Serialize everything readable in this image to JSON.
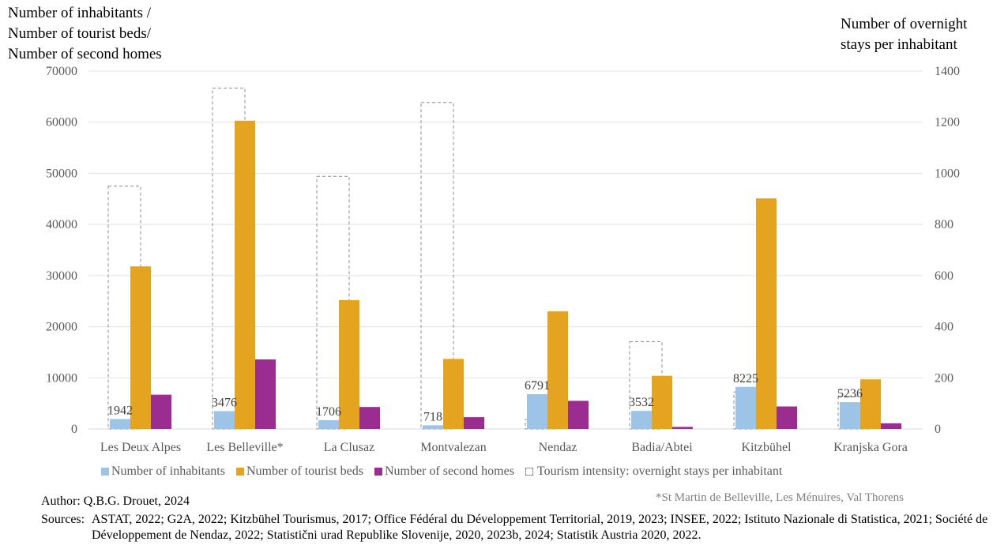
{
  "chart_data": {
    "type": "bar",
    "y_axis_left_title_lines": [
      "Number of inhabitants /",
      "Number of tourist beds/",
      "Number of second homes"
    ],
    "y_axis_right_title_lines": [
      "Number of overnight",
      "stays per inhabitant"
    ],
    "ylim_left": [
      0,
      70000
    ],
    "ylim_right": [
      0,
      1400
    ],
    "y_ticks_left": [
      "0",
      "10000",
      "20000",
      "30000",
      "40000",
      "50000",
      "60000",
      "70000"
    ],
    "y_ticks_right": [
      "0",
      "200",
      "400",
      "600",
      "800",
      "1000",
      "1200",
      "1400"
    ],
    "grid": true,
    "legend_position": "bottom",
    "categories": [
      "Les Deux Alpes",
      "Les Belleville*",
      "La Clusaz",
      "Montvalezan",
      "Nendaz",
      "Badia/Abtei",
      "Kitzbühel",
      "Kranjska Gora"
    ],
    "series": [
      {
        "name": "Number of inhabitants",
        "axis": "left",
        "color": "#9dc3e6",
        "values": [
          1942,
          3476,
          1706,
          718,
          6791,
          3532,
          8225,
          5236
        ],
        "data_labels": [
          "1942",
          "3476",
          "1706",
          "718",
          "6791",
          "3532",
          "8225",
          "5236"
        ]
      },
      {
        "name": "Number of tourist beds",
        "axis": "left",
        "color": "#e5a41f",
        "values": [
          31800,
          60300,
          25200,
          13700,
          23000,
          10400,
          45100,
          9700
        ]
      },
      {
        "name": "Number of second homes",
        "axis": "left",
        "color": "#9b2d91",
        "values": [
          6700,
          13600,
          4300,
          2300,
          5500,
          400,
          4400,
          1100
        ]
      },
      {
        "name": "Tourism intensity: overnight stays per inhabitant",
        "axis": "right",
        "style": "dashed-outline",
        "values": [
          950,
          1333,
          988,
          1277,
          37,
          342,
          145,
          128
        ]
      }
    ]
  },
  "footnote": "*St Martin de Belleville, Les Ménuires, Val Thorens",
  "author": "Author: Q.B.G. Drouet, 2024",
  "sources_key": "Sources:",
  "sources_text": "ASTAT, 2022; G2A, 2022; Kitzbühel Tourismus, 2017; Office Fédéral du Développement Territorial, 2019, 2023; INSEE, 2022; Istituto Nazionale di Statistica, 2021; Société de Développement de Nendaz, 2022; Statistični urad Republike Slovenije, 2020, 2023b, 2024; Statistik Austria 2020, 2022."
}
